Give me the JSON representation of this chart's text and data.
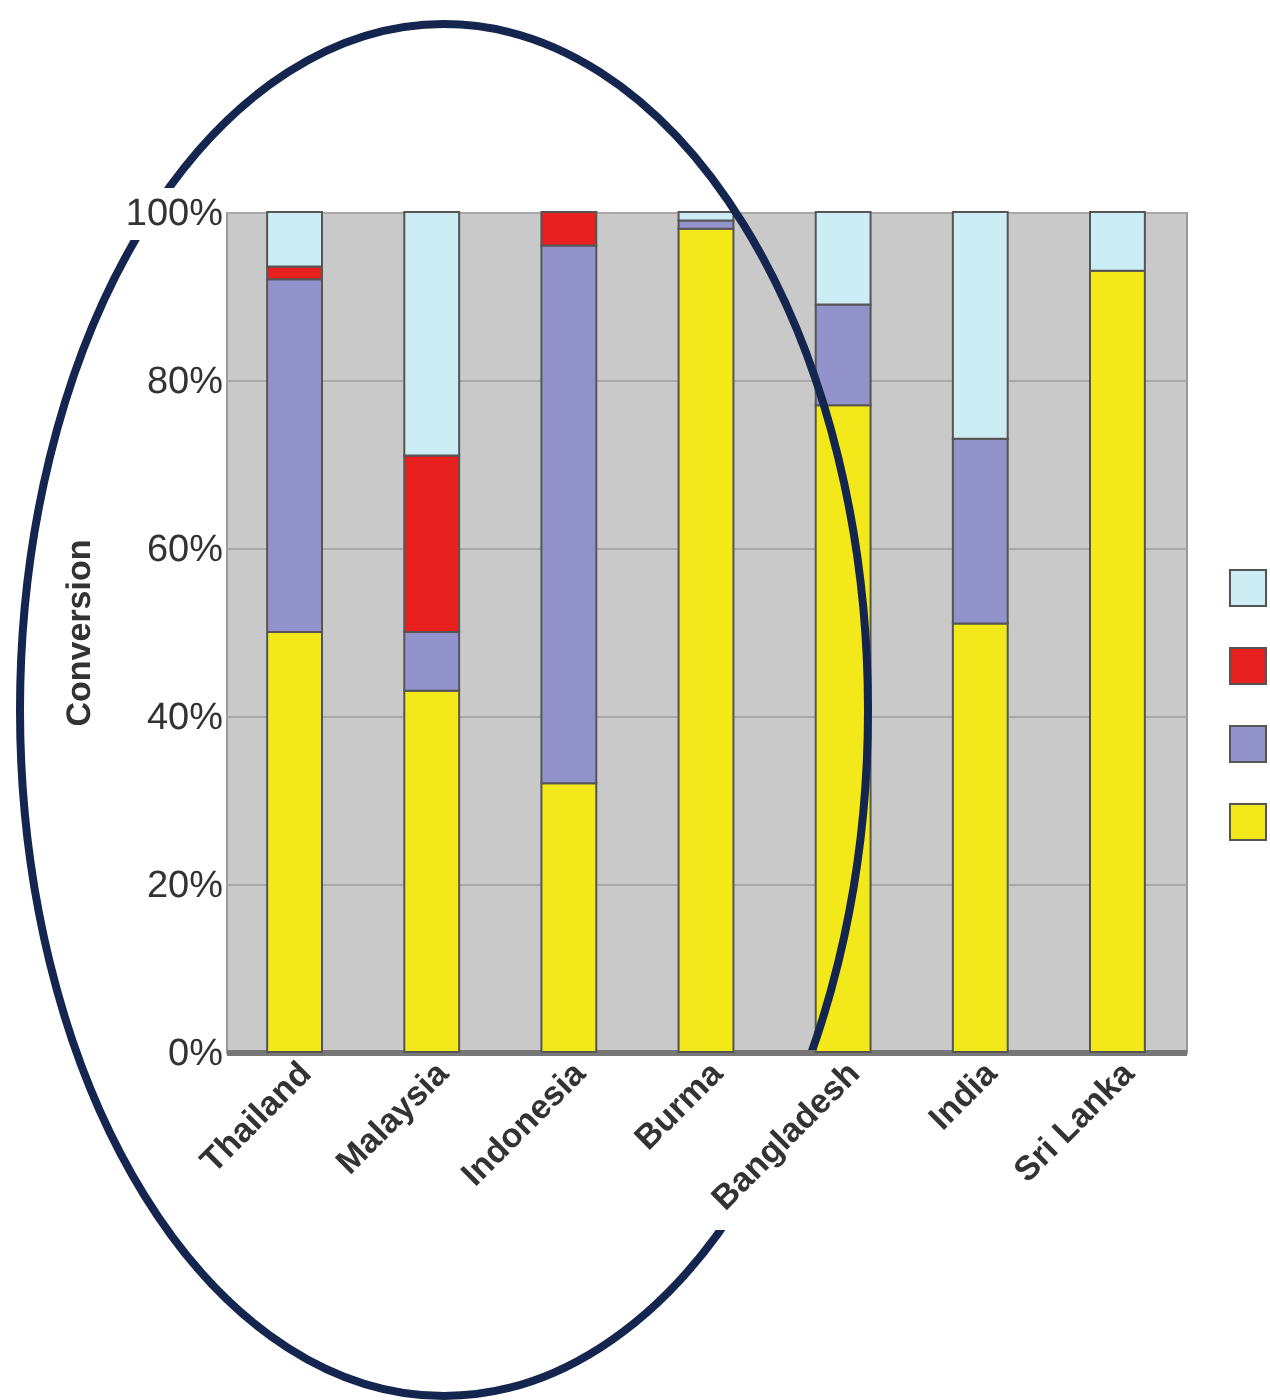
{
  "chart_data": {
    "type": "bar",
    "stacked": true,
    "ylabel": "Conversion",
    "categories": [
      "Thailand",
      "Malaysia",
      "Indonesia",
      "Burma",
      "Bangladesh",
      "India",
      "Sri Lanka"
    ],
    "series": [
      {
        "color": "#f2e81a",
        "values": [
          50,
          43,
          32,
          98,
          77,
          51,
          93
        ]
      },
      {
        "color": "#9393cc",
        "values": [
          42,
          7,
          64,
          1,
          12,
          22,
          0
        ]
      },
      {
        "color": "#e82020",
        "values": [
          1.5,
          21,
          4,
          0,
          0,
          0,
          0
        ]
      },
      {
        "color": "#cdedf4",
        "values": [
          6.5,
          29,
          0,
          1,
          11,
          27,
          7
        ]
      }
    ],
    "ylim": [
      0,
      100
    ],
    "yticks": [
      {
        "value": 0,
        "label": "0%"
      },
      {
        "value": 20,
        "label": "20%"
      },
      {
        "value": 40,
        "label": "40%"
      },
      {
        "value": 60,
        "label": "60%"
      },
      {
        "value": 80,
        "label": "80%"
      },
      {
        "value": 100,
        "label": "100%"
      }
    ],
    "grid": "y"
  }
}
